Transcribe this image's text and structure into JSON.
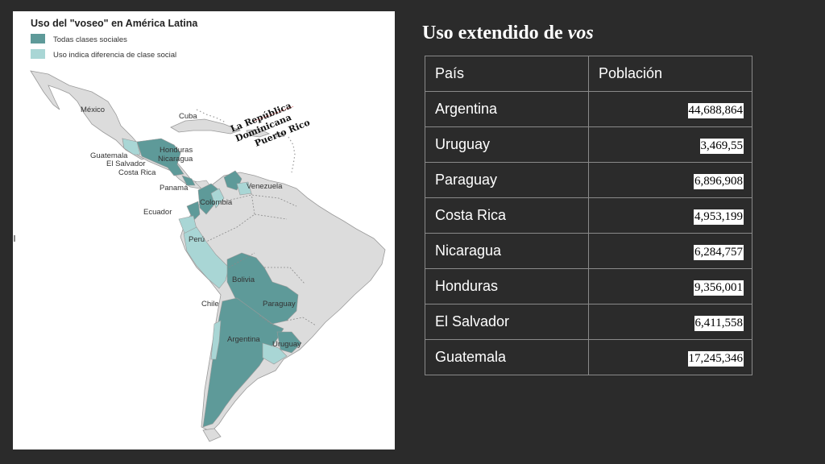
{
  "map": {
    "title": "Uso del \"voseo\" en América Latina",
    "legend": [
      {
        "label": "Todas clases sociales",
        "color": "#5e9a99"
      },
      {
        "label": "Uso indica diferencia de clase social",
        "color": "#a9d6d5"
      }
    ],
    "country_labels": {
      "mexico": "México",
      "cuba": "Cuba",
      "honduras": "Honduras",
      "nicaragua": "Nicaragua",
      "guatemala": "Guatemala",
      "el_salvador": "El Salvador",
      "costa_rica": "Costa Rica",
      "panama": "Panamá",
      "venezuela": "Venezuela",
      "colombia": "Colombia",
      "ecuador": "Ecuador",
      "peru": "Perú",
      "bolivia": "Bolivia",
      "paraguay": "Paraguay",
      "chile": "Chile",
      "argentina": "Argentina",
      "uruguay": "Uruguay"
    },
    "annotations": {
      "dominican_1": "La República",
      "dominican_2": "Dominicana",
      "puerto_rico": "Puerto Rico"
    },
    "colors": {
      "land": "#dcdcdc",
      "border": "#9a9a9a",
      "dark": "#5e9a99",
      "light": "#a9d6d5"
    }
  },
  "slide": {
    "title_plain": "Uso extendido de ",
    "title_italic": "vos"
  },
  "table": {
    "headers": {
      "country": "País",
      "population": "Población"
    },
    "rows": [
      {
        "country": "Argentina",
        "population": "44,688,864"
      },
      {
        "country": "Uruguay",
        "population": "3,469,55"
      },
      {
        "country": "Paraguay",
        "population": "6,896,908"
      },
      {
        "country": "Costa Rica",
        "population": "4,953,199"
      },
      {
        "country": "Nicaragua",
        "population": "6,284,757"
      },
      {
        "country": "Honduras",
        "population": "9,356,001"
      },
      {
        "country": "El Salvador",
        "population": "6,411,558"
      },
      {
        "country": "Guatemala",
        "population": "17,245,346"
      }
    ]
  }
}
